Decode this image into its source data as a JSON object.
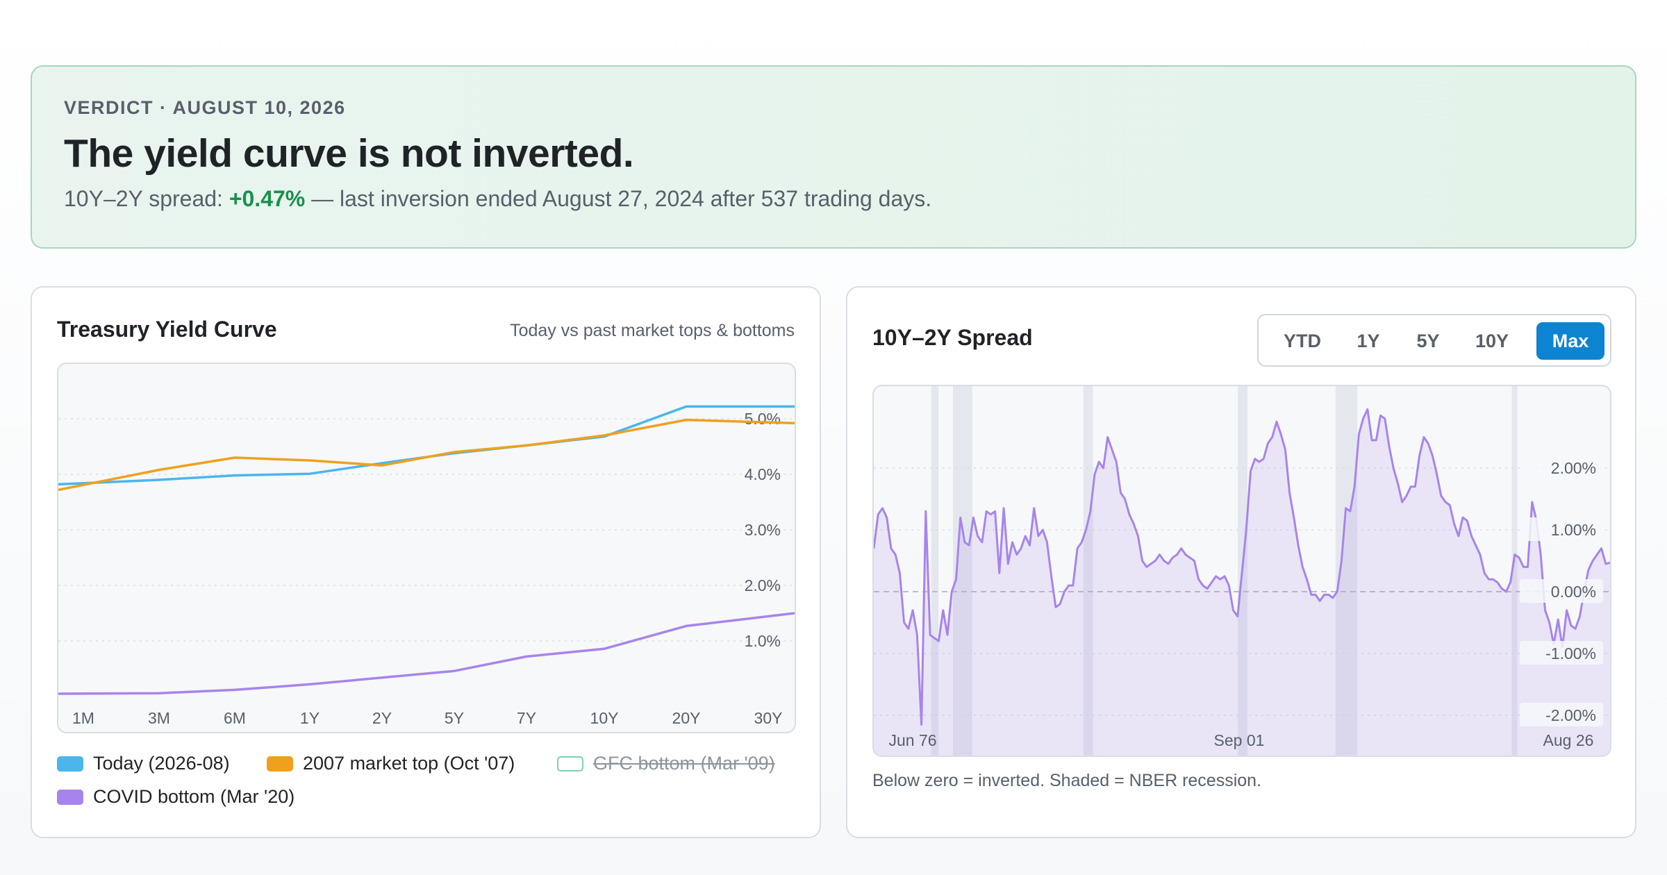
{
  "verdict": {
    "kicker": "VERDICT · AUGUST 10, 2026",
    "title": "The yield curve is not inverted.",
    "sub_prefix": "10Y–2Y spread: ",
    "spread_value": "+0.47%",
    "sub_suffix": " — last inversion ended August 27, 2024 after 537 trading days."
  },
  "yield_card": {
    "title": "Treasury Yield Curve",
    "subtitle": "Today vs past market tops & bottoms",
    "legend": [
      {
        "label": "Today (2026-08)",
        "color": "#4ab6ec",
        "enabled": true
      },
      {
        "label": "2007 market top (Oct '07)",
        "color": "#f0a01e",
        "enabled": true
      },
      {
        "label": "GFC bottom (Mar '09)",
        "color": "#2bb38a",
        "enabled": false
      },
      {
        "label": "COVID bottom (Mar '20)",
        "color": "#a784ec",
        "enabled": true
      }
    ]
  },
  "spread_card": {
    "title": "10Y–2Y Spread",
    "ranges": [
      {
        "label": "YTD",
        "active": false
      },
      {
        "label": "1Y",
        "active": false
      },
      {
        "label": "5Y",
        "active": false
      },
      {
        "label": "10Y",
        "active": false
      },
      {
        "label": "Max",
        "active": true
      }
    ],
    "note": "Below zero = inverted. Shaded = NBER recession."
  },
  "chart_data": [
    {
      "type": "line",
      "title": "Treasury Yield Curve",
      "categories": [
        "1M",
        "3M",
        "6M",
        "1Y",
        "2Y",
        "5Y",
        "7Y",
        "10Y",
        "20Y",
        "30Y"
      ],
      "y_ticks": [
        "1.0%",
        "2.0%",
        "3.0%",
        "4.0%",
        "5.0%"
      ],
      "ylim": [
        0,
        6
      ],
      "grid": true,
      "y_axis_side": "right",
      "series": [
        {
          "name": "Today (2026-08)",
          "color": "#4ab6ec",
          "values": [
            3.82,
            3.9,
            3.98,
            4.01,
            4.2,
            4.38,
            4.52,
            4.68,
            5.22,
            5.22
          ]
        },
        {
          "name": "2007 market top (Oct '07)",
          "color": "#f0a01e",
          "values": [
            3.72,
            4.08,
            4.3,
            4.25,
            4.16,
            4.4,
            4.52,
            4.7,
            4.98,
            4.92
          ]
        },
        {
          "name": "COVID bottom (Mar '20)",
          "color": "#a784ec",
          "values": [
            0.05,
            0.06,
            0.12,
            0.22,
            0.34,
            0.46,
            0.72,
            0.86,
            1.27,
            1.5
          ]
        }
      ]
    },
    {
      "type": "area",
      "title": "10Y–2Y Spread",
      "x_labels": [
        "Jun 76",
        "Sep 01",
        "Aug 26"
      ],
      "y_ticks": [
        "2.00%",
        "1.00%",
        "0.00%",
        "-1.00%",
        "-2.00%"
      ],
      "ylim": [
        -2.5,
        3.2
      ],
      "grid": true,
      "y_axis_side": "right",
      "x_range": [
        "1976-06",
        "2026-08"
      ],
      "recessions": [
        [
          "1980-01",
          "1980-07"
        ],
        [
          "1981-07",
          "1982-11"
        ],
        [
          "1990-07",
          "1991-03"
        ],
        [
          "2001-03",
          "2001-11"
        ],
        [
          "2007-12",
          "2009-06"
        ],
        [
          "2020-02",
          "2020-04"
        ]
      ],
      "values": [
        0.7,
        1.25,
        1.35,
        1.2,
        0.7,
        0.6,
        0.3,
        -0.5,
        -0.6,
        -0.3,
        -0.7,
        -2.15,
        1.3,
        -0.7,
        -0.75,
        -0.8,
        -0.3,
        -0.7,
        0.0,
        0.2,
        1.2,
        0.8,
        0.75,
        1.2,
        0.9,
        0.8,
        1.3,
        1.25,
        1.3,
        0.3,
        1.35,
        0.45,
        0.8,
        0.6,
        0.7,
        0.9,
        0.75,
        1.35,
        0.9,
        1.0,
        0.8,
        0.25,
        -0.25,
        -0.2,
        0.0,
        0.1,
        0.1,
        0.7,
        0.8,
        1.0,
        1.3,
        1.9,
        2.1,
        2.0,
        2.5,
        2.3,
        2.1,
        1.6,
        1.5,
        1.25,
        1.1,
        0.9,
        0.5,
        0.4,
        0.45,
        0.5,
        0.6,
        0.5,
        0.45,
        0.55,
        0.6,
        0.7,
        0.6,
        0.55,
        0.5,
        0.2,
        0.1,
        0.05,
        0.15,
        0.25,
        0.2,
        0.25,
        0.1,
        -0.3,
        -0.4,
        0.3,
        1.0,
        1.95,
        2.15,
        2.1,
        2.15,
        2.4,
        2.5,
        2.75,
        2.55,
        2.3,
        1.6,
        1.2,
        0.75,
        0.4,
        0.2,
        -0.05,
        -0.05,
        -0.15,
        -0.05,
        -0.05,
        -0.1,
        0.0,
        0.5,
        1.35,
        1.3,
        1.7,
        2.55,
        2.8,
        2.95,
        2.45,
        2.45,
        2.85,
        2.8,
        2.35,
        2.0,
        1.75,
        1.45,
        1.55,
        1.7,
        1.7,
        2.2,
        2.5,
        2.4,
        2.2,
        1.9,
        1.55,
        1.45,
        1.4,
        1.1,
        0.9,
        1.2,
        1.15,
        0.9,
        0.75,
        0.6,
        0.3,
        0.2,
        0.2,
        0.15,
        0.05,
        0.0,
        0.15,
        0.6,
        0.55,
        0.4,
        0.4,
        1.45,
        1.15,
        0.6,
        -0.3,
        -0.5,
        -0.85,
        -0.45,
        -0.9,
        -0.3,
        -0.55,
        -0.6,
        -0.4,
        0.0,
        0.35,
        0.5,
        0.6,
        0.7,
        0.45,
        0.47
      ]
    }
  ]
}
